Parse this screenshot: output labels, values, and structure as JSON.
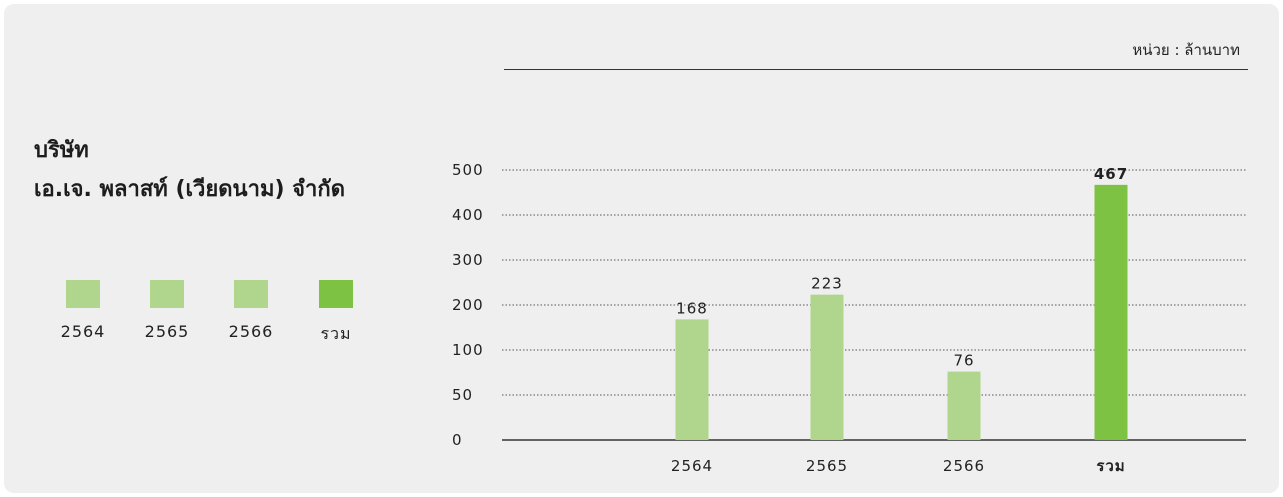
{
  "unit_label": "หน่วย : ล้านบาท",
  "company": {
    "line1": "บริษัท",
    "line2": "เอ.เจ. พลาสท์ (เวียดนาม) จำกัด"
  },
  "legend": [
    {
      "label": "2564",
      "color": "#b0d68d"
    },
    {
      "label": "2565",
      "color": "#b0d68d"
    },
    {
      "label": "2566",
      "color": "#b0d68d"
    },
    {
      "label": "รวม",
      "color": "#7dc242"
    }
  ],
  "chart_data": {
    "type": "bar",
    "categories": [
      "2564",
      "2565",
      "2566",
      "รวม"
    ],
    "values": [
      168,
      223,
      76,
      467
    ],
    "data_labels": [
      "168",
      "223",
      "76",
      "467"
    ],
    "bar_colors": [
      "#b0d68d",
      "#b0d68d",
      "#b0d68d",
      "#7dc242"
    ],
    "y_ticks": [
      0,
      50,
      100,
      200,
      300,
      400,
      500
    ],
    "ylim": [
      0,
      500
    ],
    "grid": true,
    "title": "",
    "xlabel": "",
    "ylabel": ""
  }
}
